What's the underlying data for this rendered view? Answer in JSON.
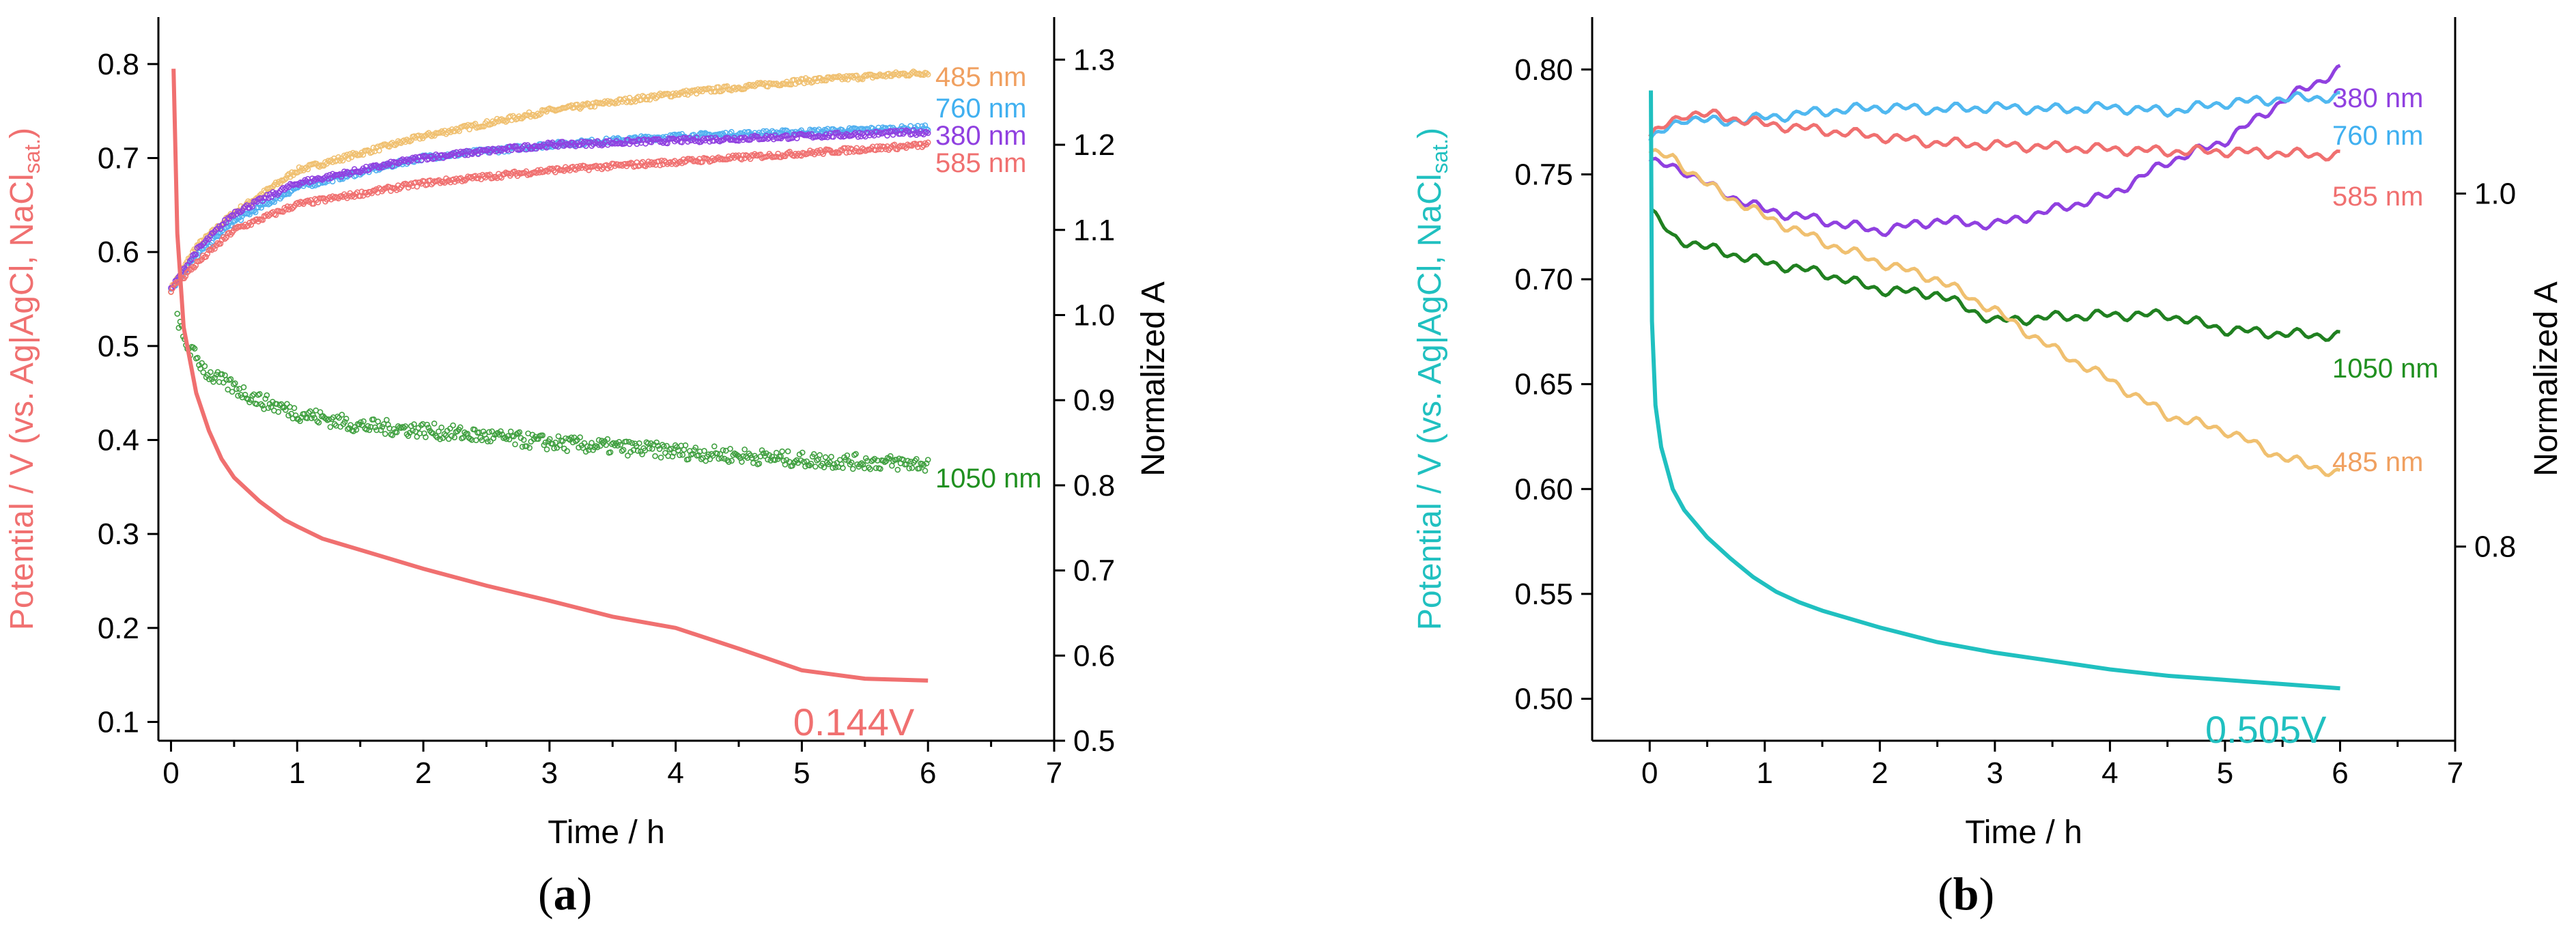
{
  "chart_data": [
    {
      "type": "line",
      "panel_label": "a",
      "xlabel": "Time / h",
      "ylabel_left": "Potential / V (vs. Ag|AgCl, NaCl",
      "ylabel_left_sub": "sat.",
      "ylabel_left_end": ")",
      "ylabel_right": "Normalized A",
      "xlim": [
        -0.1,
        7
      ],
      "ylim_left": [
        0.08,
        0.85
      ],
      "ylim_right": [
        0.5,
        1.35
      ],
      "xticks": [
        "0",
        "1",
        "2",
        "3",
        "4",
        "5",
        "6",
        "7"
      ],
      "yticks_left": [
        "0.1",
        "0.2",
        "0.3",
        "0.4",
        "0.5",
        "0.6",
        "0.7",
        "0.8"
      ],
      "yticks_right": [
        "0.5",
        "0.6",
        "0.7",
        "0.8",
        "0.9",
        "1.0",
        "1.1",
        "1.2",
        "1.3"
      ],
      "potential": {
        "color": "#f07070",
        "annotation": "0.144V",
        "x": [
          0.02,
          0.05,
          0.1,
          0.2,
          0.3,
          0.4,
          0.5,
          0.7,
          0.9,
          1.0,
          1.2,
          1.5,
          2.0,
          2.5,
          3.0,
          3.5,
          4.0,
          4.5,
          5.0,
          5.5,
          6.0
        ],
        "y": [
          0.795,
          0.62,
          0.52,
          0.45,
          0.41,
          0.38,
          0.36,
          0.335,
          0.315,
          0.308,
          0.295,
          0.283,
          0.263,
          0.245,
          0.229,
          0.212,
          0.2,
          0.178,
          0.155,
          0.146,
          0.144
        ]
      },
      "series": [
        {
          "name": "485 nm",
          "color": "#f0c070",
          "label_color": "#f0a060",
          "style": "scatter",
          "x": [
            0,
            0.2,
            0.5,
            1,
            2,
            3,
            4,
            5,
            6
          ],
          "y": [
            1.03,
            1.08,
            1.12,
            1.17,
            1.21,
            1.24,
            1.26,
            1.275,
            1.285
          ]
        },
        {
          "name": "760 nm",
          "color": "#50b0f0",
          "label_color": "#40b0f0",
          "style": "scatter",
          "x": [
            0,
            0.2,
            0.5,
            1,
            2,
            3,
            4,
            5,
            6
          ],
          "y": [
            1.03,
            1.07,
            1.11,
            1.15,
            1.185,
            1.2,
            1.21,
            1.215,
            1.22
          ]
        },
        {
          "name": "380 nm",
          "color": "#9040e0",
          "label_color": "#9040e0",
          "style": "scatter",
          "x": [
            0,
            0.2,
            0.5,
            1,
            2,
            3,
            4,
            5,
            6
          ],
          "y": [
            1.03,
            1.075,
            1.12,
            1.155,
            1.185,
            1.2,
            1.205,
            1.21,
            1.215
          ]
        },
        {
          "name": "585 nm",
          "color": "#f07070",
          "label_color": "#f07070",
          "style": "scatter",
          "x": [
            0,
            0.2,
            0.5,
            1,
            2,
            3,
            4,
            5,
            6
          ],
          "y": [
            1.03,
            1.06,
            1.1,
            1.13,
            1.155,
            1.17,
            1.18,
            1.19,
            1.2
          ]
        },
        {
          "name": "1050 nm",
          "color": "#40a040",
          "label_color": "#209020",
          "style": "scatter",
          "x": [
            0.05,
            0.1,
            0.2,
            0.3,
            0.5,
            0.7,
            1,
            1.5,
            2,
            3,
            4,
            5,
            6
          ],
          "y": [
            1.0,
            0.97,
            0.95,
            0.93,
            0.915,
            0.9,
            0.885,
            0.87,
            0.865,
            0.85,
            0.84,
            0.83,
            0.825
          ]
        }
      ]
    },
    {
      "type": "line",
      "panel_label": "b",
      "xlabel": "Time / h",
      "ylabel_left": "Potential / V (vs. Ag|AgCl, NaCl",
      "ylabel_left_sub": "sat.",
      "ylabel_left_end": ")",
      "ylabel_right": "Normalized A",
      "xlim": [
        -0.5,
        7
      ],
      "ylim_left": [
        0.48,
        0.825
      ],
      "ylim_right": [
        0.69,
        1.1
      ],
      "xticks": [
        "0",
        "1",
        "2",
        "3",
        "4",
        "5",
        "6",
        "7"
      ],
      "yticks_left": [
        "0.50",
        "0.55",
        "0.60",
        "0.65",
        "0.70",
        "0.75",
        "0.80"
      ],
      "yticks_right": [
        "0.8",
        "1.0"
      ],
      "potential": {
        "color": "#20c0c0",
        "annotation": "0.505V",
        "x": [
          0.01,
          0.02,
          0.05,
          0.1,
          0.2,
          0.3,
          0.5,
          0.7,
          0.9,
          1.1,
          1.3,
          1.5,
          2.0,
          2.5,
          3.0,
          3.5,
          4.0,
          4.5,
          5.0,
          5.5,
          6.0
        ],
        "y": [
          0.79,
          0.68,
          0.64,
          0.62,
          0.6,
          0.59,
          0.577,
          0.567,
          0.558,
          0.551,
          0.546,
          0.542,
          0.534,
          0.527,
          0.522,
          0.518,
          0.514,
          0.511,
          0.509,
          0.507,
          0.505
        ]
      },
      "series": [
        {
          "name": "380 nm",
          "color": "#9040e0",
          "label_color": "#9040e0",
          "style": "line",
          "x": [
            0,
            0.3,
            0.6,
            1.0,
            1.5,
            2.0,
            2.5,
            3.0,
            3.5,
            4.0,
            4.5,
            5.0,
            5.5,
            6.0
          ],
          "y": [
            0.756,
            0.752,
            0.742,
            0.733,
            0.728,
            0.723,
            0.728,
            0.726,
            0.733,
            0.74,
            0.756,
            0.766,
            0.785,
            0.8
          ]
        },
        {
          "name": "760 nm",
          "color": "#50b8f0",
          "label_color": "#40b0f0",
          "style": "line",
          "x": [
            0,
            0.3,
            0.6,
            1.0,
            1.5,
            2.0,
            2.5,
            3.0,
            3.5,
            4.0,
            4.5,
            5.0,
            5.5,
            6.0
          ],
          "y": [
            0.766,
            0.777,
            0.775,
            0.777,
            0.78,
            0.782,
            0.781,
            0.782,
            0.781,
            0.782,
            0.78,
            0.784,
            0.786,
            0.787
          ]
        },
        {
          "name": "585 nm",
          "color": "#f07070",
          "label_color": "#f07070",
          "style": "line",
          "x": [
            0,
            0.3,
            0.6,
            1.0,
            1.5,
            2.0,
            2.5,
            3.0,
            3.5,
            4.0,
            4.5,
            5.0,
            5.5,
            6.0
          ],
          "y": [
            0.768,
            0.779,
            0.778,
            0.774,
            0.771,
            0.768,
            0.765,
            0.764,
            0.763,
            0.762,
            0.761,
            0.761,
            0.76,
            0.759
          ]
        },
        {
          "name": "1050 nm",
          "color": "#208020",
          "label_color": "#209020",
          "style": "line",
          "x": [
            0,
            0.2,
            0.5,
            1.0,
            1.5,
            2.0,
            2.5,
            3.0,
            3.5,
            4.0,
            4.5,
            5.0,
            5.5,
            6.0
          ],
          "y": [
            0.733,
            0.72,
            0.715,
            0.708,
            0.703,
            0.695,
            0.693,
            0.68,
            0.682,
            0.683,
            0.683,
            0.676,
            0.674,
            0.673
          ]
        },
        {
          "name": "485 nm",
          "color": "#f0c070",
          "label_color": "#f0a060",
          "style": "line",
          "x": [
            0,
            0.2,
            0.5,
            1.0,
            1.5,
            2.0,
            2.5,
            3.0,
            3.5,
            4.0,
            4.5,
            5.0,
            5.5,
            6.0
          ],
          "y": [
            0.76,
            0.758,
            0.745,
            0.73,
            0.718,
            0.708,
            0.7,
            0.685,
            0.667,
            0.652,
            0.635,
            0.628,
            0.615,
            0.607
          ]
        }
      ]
    }
  ]
}
